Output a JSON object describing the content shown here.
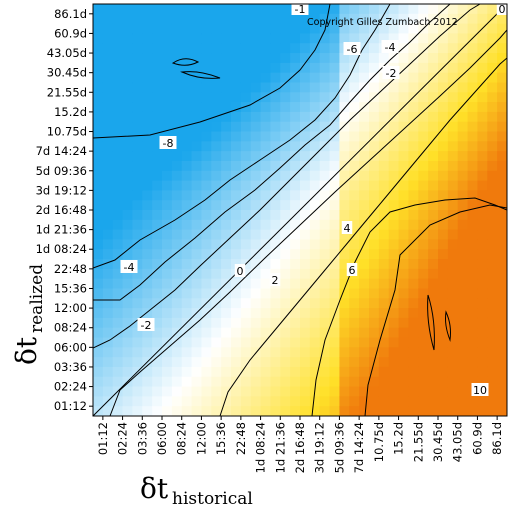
{
  "chart_data": {
    "type": "heatmap",
    "copyright": "Copyright Gilles Zumbach 2012",
    "xlabel": {
      "main": "δt",
      "sub": "historical"
    },
    "ylabel": {
      "main": "δt",
      "sub": "realized"
    },
    "x_ticks": [
      "01:12",
      "02:24",
      "03:36",
      "06:00",
      "08:24",
      "12:00",
      "15:36",
      "22:48",
      "1d 08:24",
      "1d 21:36",
      "2d 16:48",
      "3d 19:12",
      "5d 09:36",
      "7d 14:24",
      "10.75d",
      "15.2d",
      "21.55d",
      "30.45d",
      "43.05d",
      "60.9d",
      "86.1d"
    ],
    "y_ticks": [
      "01:12",
      "02:24",
      "03:36",
      "06:00",
      "08:24",
      "12:00",
      "15:36",
      "22:48",
      "1d 08:24",
      "1d 21:36",
      "2d 16:48",
      "3d 19:12",
      "5d 09:36",
      "7d 14:24",
      "10.75d",
      "15.2d",
      "21.55d",
      "30.45d",
      "43.05d",
      "60.9d",
      "86.1d"
    ],
    "contour_labels": [
      "-8",
      "-6",
      "-4",
      "-4",
      "-2",
      "-2",
      "0",
      "2",
      "4",
      "6",
      "10",
      "-1",
      "0"
    ],
    "colormap": {
      "negative": "#1aa6ec",
      "zero": "#ffffff",
      "positive": "#f07a0c"
    },
    "description_z_range": [
      -10,
      10
    ],
    "diagonal_line": true
  }
}
